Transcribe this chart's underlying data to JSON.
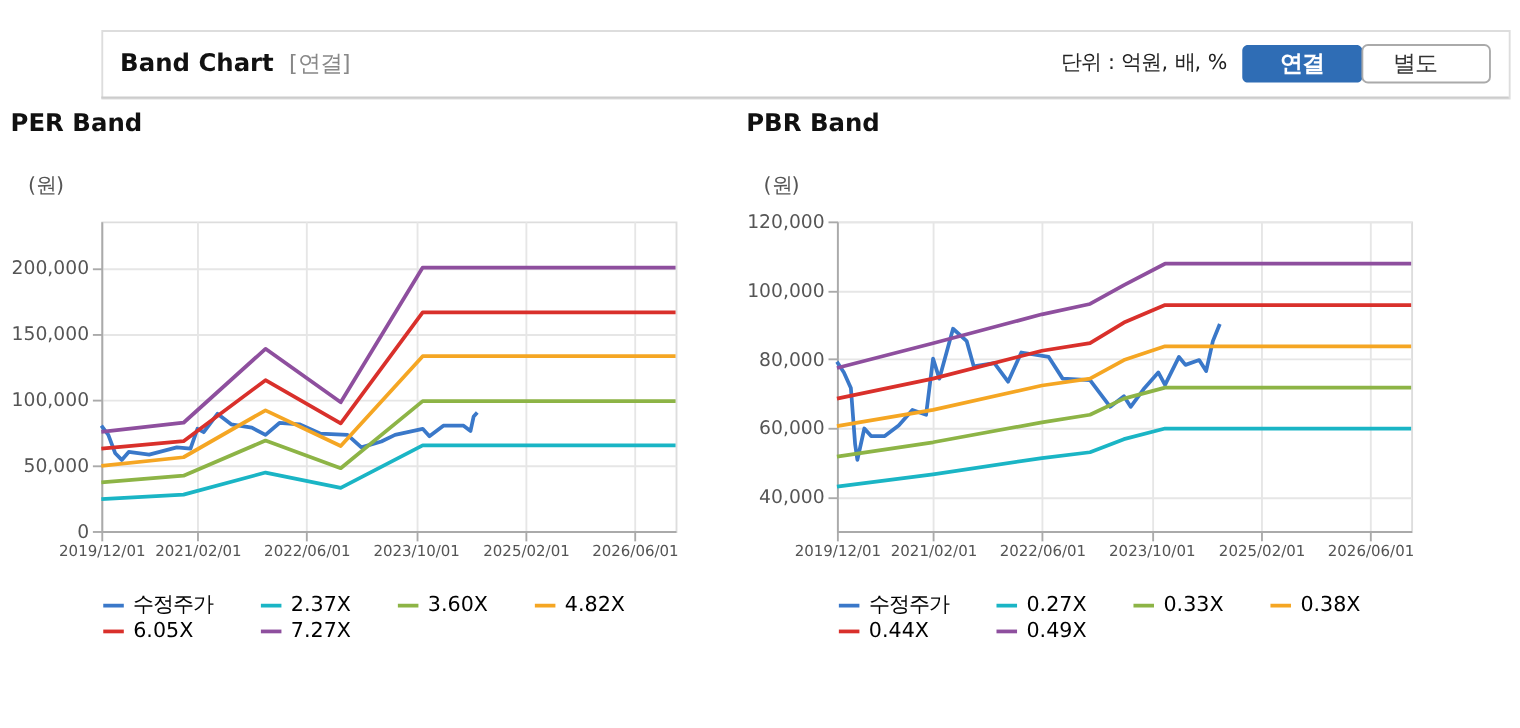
{
  "chart_data": [
    {
      "type": "other",
      "title": "Band Chart",
      "annotations": [
        "[연결]",
        "단위 : 억원, 배, %",
        "연결",
        "별도"
      ]
    },
    {
      "type": "line",
      "title": "PER Band",
      "ylabel": "(원)",
      "xlim": [
        "2019-12-01",
        "2026-12-01"
      ],
      "ylim": [
        0,
        235000
      ],
      "xticks": [
        {
          "value": "2019-12-01",
          "label": "2019/12/01"
        },
        {
          "value": "2021-02-01",
          "label": "2021/02/01"
        },
        {
          "value": "2022-06-01",
          "label": "2022/06/01"
        },
        {
          "value": "2023-10-01",
          "label": "2023/10/01"
        },
        {
          "value": "2025-02-01",
          "label": "2025/02/01"
        },
        {
          "value": "2026-06-01",
          "label": "2026/06/01"
        }
      ],
      "yticks": [
        0,
        {
          "value": 50000,
          "label": "50,000"
        },
        {
          "value": 100000,
          "label": "100,000"
        },
        {
          "value": 150000,
          "label": "150,000"
        },
        {
          "value": 200000,
          "label": "200,000"
        }
      ],
      "grid": true,
      "legend": "bottom",
      "marker": "none",
      "line_style": "solid",
      "series": [
        {
          "name": "수정주가",
          "color": "#3a78c9",
          "x": [
            "2019-12-01",
            "2020-01-01",
            "2020-02-01",
            "2020-03-01",
            "2020-04-01",
            "2020-07-01",
            "2020-11-01",
            "2021-01-01",
            "2021-02-01",
            "2021-03-01",
            "2021-05-01",
            "2021-07-01",
            "2021-10-01",
            "2021-12-01",
            "2022-02-01",
            "2022-05-01",
            "2022-08-01",
            "2022-12-01",
            "2023-02-01",
            "2023-05-01",
            "2023-07-01",
            "2023-11-01",
            "2023-12-01",
            "2024-02-01",
            "2024-05-01",
            "2024-06-01",
            "2024-06-15",
            "2024-07-01"
          ],
          "values": [
            80000,
            73000,
            59000,
            54000,
            60000,
            58000,
            63500,
            62600,
            77600,
            75000,
            89000,
            81000,
            78500,
            73000,
            82000,
            81000,
            74000,
            73000,
            63500,
            68000,
            73000,
            77600,
            72000,
            80000,
            80000,
            76000,
            87000,
            90000
          ]
        },
        {
          "name": "2.37X",
          "color": "#1ab5c5",
          "x": [
            "2019-12-01",
            "2020-12-01",
            "2021-12-01",
            "2022-11-01",
            "2023-11-01",
            "2026-12-01"
          ],
          "values": [
            24300,
            27600,
            44400,
            32700,
            65000,
            65000
          ]
        },
        {
          "name": "3.60X",
          "color": "#8db446",
          "x": [
            "2019-12-01",
            "2020-12-01",
            "2021-12-01",
            "2022-11-01",
            "2023-11-01",
            "2026-12-01"
          ],
          "values": [
            36900,
            42000,
            68700,
            47700,
            98600,
            98600
          ]
        },
        {
          "name": "4.82X",
          "color": "#f5a623",
          "x": [
            "2019-12-01",
            "2020-12-01",
            "2021-12-01",
            "2022-11-01",
            "2023-11-01",
            "2026-12-01"
          ],
          "values": [
            49500,
            56000,
            91600,
            64500,
            132700,
            132700
          ]
        },
        {
          "name": "6.05X",
          "color": "#d9302b",
          "x": [
            "2019-12-01",
            "2020-12-01",
            "2021-12-01",
            "2022-11-01",
            "2023-11-01",
            "2026-12-01"
          ],
          "values": [
            62600,
            68200,
            114500,
            81800,
            165900,
            165900
          ]
        },
        {
          "name": "7.27X",
          "color": "#8e4f9e",
          "x": [
            "2019-12-01",
            "2020-12-01",
            "2021-12-01",
            "2022-11-01",
            "2023-11-01",
            "2026-12-01"
          ],
          "values": [
            75200,
            82200,
            138300,
            97700,
            200000,
            200000
          ]
        }
      ]
    },
    {
      "type": "line",
      "title": "PBR Band",
      "ylabel": "(원)",
      "xlim": [
        "2019-12-01",
        "2026-12-01"
      ],
      "ylim": [
        30000,
        120000
      ],
      "xticks": [
        {
          "value": "2019-12-01",
          "label": "2019/12/01"
        },
        {
          "value": "2021-02-01",
          "label": "2021/02/01"
        },
        {
          "value": "2022-06-01",
          "label": "2022/06/01"
        },
        {
          "value": "2023-10-01",
          "label": "2023/10/01"
        },
        {
          "value": "2025-02-01",
          "label": "2025/02/01"
        },
        {
          "value": "2026-06-01",
          "label": "2026/06/01"
        }
      ],
      "yticks": [
        {
          "value": 40000,
          "label": "40,000"
        },
        {
          "value": 60000,
          "label": "60,000"
        },
        {
          "value": 80000,
          "label": "80,000"
        },
        {
          "value": 100000,
          "label": "100,000"
        },
        {
          "value": 120000,
          "label": "120,000"
        }
      ],
      "grid": true,
      "legend": "bottom",
      "marker": "none",
      "line_style": "solid",
      "series": [
        {
          "name": "수정주가",
          "color": "#3a78c9",
          "x": [
            "2019-12-01",
            "2020-01-01",
            "2020-02-01",
            "2020-02-20",
            "2020-03-01",
            "2020-04-01",
            "2020-05-01",
            "2020-07-01",
            "2020-09-01",
            "2020-11-01",
            "2021-01-01",
            "2021-02-01",
            "2021-03-01",
            "2021-05-01",
            "2021-07-01",
            "2021-08-01",
            "2021-11-01",
            "2022-01-01",
            "2022-03-01",
            "2022-07-01",
            "2022-09-01",
            "2023-01-01",
            "2023-04-01",
            "2023-06-01",
            "2023-07-01",
            "2023-09-01",
            "2023-11-01",
            "2023-12-01",
            "2024-02-01",
            "2024-03-01",
            "2024-05-01",
            "2024-06-01",
            "2024-07-01",
            "2024-08-01"
          ],
          "values": [
            79200,
            76100,
            71600,
            55200,
            50700,
            59800,
            57600,
            57600,
            60700,
            65200,
            63800,
            80100,
            74300,
            88800,
            85200,
            77900,
            78800,
            73400,
            81900,
            80600,
            74300,
            73900,
            66100,
            69200,
            66100,
            71600,
            76100,
            72500,
            80600,
            78300,
            79700,
            76500,
            85200,
            90200
          ]
        },
        {
          "name": "0.27X",
          "color": "#1ab5c5",
          "x": [
            "2019-12-01",
            "2021-02-01",
            "2022-06-01",
            "2023-01-01",
            "2023-06-01",
            "2023-12-01",
            "2026-12-01"
          ],
          "values": [
            42900,
            46500,
            51200,
            52900,
            56700,
            59800,
            59800
          ]
        },
        {
          "name": "0.33X",
          "color": "#8db446",
          "x": [
            "2019-12-01",
            "2021-02-01",
            "2022-06-01",
            "2023-01-01",
            "2023-06-01",
            "2023-12-01",
            "2026-12-01"
          ],
          "values": [
            51600,
            55800,
            61600,
            63800,
            68500,
            71700,
            71700
          ]
        },
        {
          "name": "0.38X",
          "color": "#f5a623",
          "x": [
            "2019-12-01",
            "2021-02-01",
            "2022-06-01",
            "2023-01-01",
            "2023-06-01",
            "2023-12-01",
            "2026-12-01"
          ],
          "values": [
            60500,
            65200,
            72300,
            74300,
            79700,
            83700,
            83700
          ]
        },
        {
          "name": "0.44X",
          "color": "#d9302b",
          "x": [
            "2019-12-01",
            "2021-02-01",
            "2022-06-01",
            "2023-01-01",
            "2023-06-01",
            "2023-12-01",
            "2026-12-01"
          ],
          "values": [
            68500,
            74300,
            82400,
            84600,
            90600,
            95700,
            95700
          ]
        },
        {
          "name": "0.49X",
          "color": "#8e4f9e",
          "x": [
            "2019-12-01",
            "2021-02-01",
            "2022-06-01",
            "2023-01-01",
            "2023-06-01",
            "2023-12-01",
            "2026-12-01"
          ],
          "values": [
            77400,
            84600,
            93000,
            96000,
            101500,
            107700,
            107700
          ]
        }
      ]
    }
  ]
}
